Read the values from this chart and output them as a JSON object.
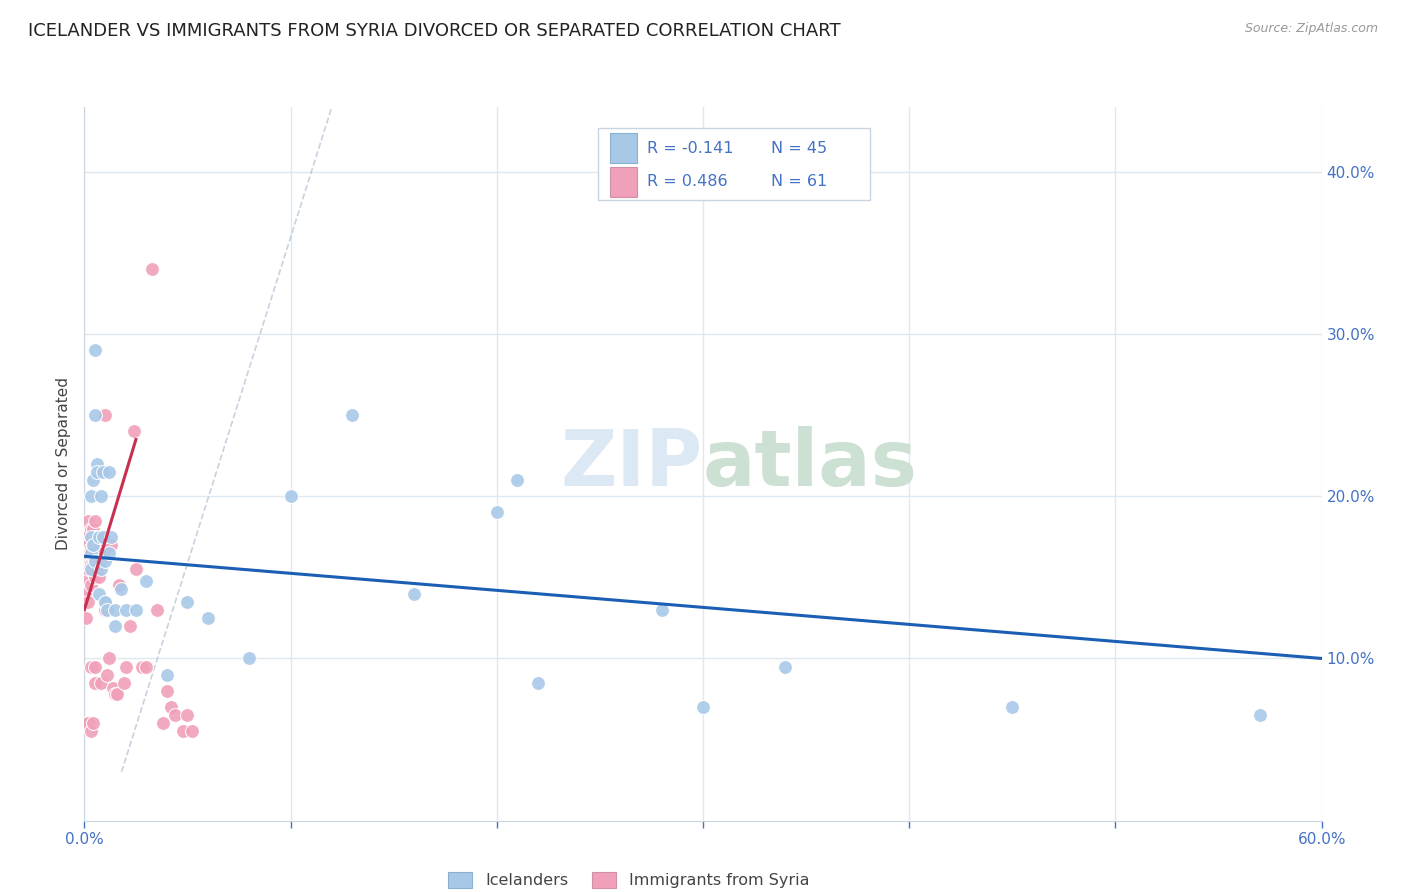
{
  "title": "ICELANDER VS IMMIGRANTS FROM SYRIA DIVORCED OR SEPARATED CORRELATION CHART",
  "source": "Source: ZipAtlas.com",
  "ylabel": "Divorced or Separated",
  "xlim": [
    0.0,
    0.6
  ],
  "ylim": [
    0.0,
    0.44
  ],
  "icelander_color": "#a8c8e8",
  "syria_color": "#f0a0b8",
  "trend_blue": "#1a5fb4",
  "trend_pink": "#c83050",
  "background_color": "#ffffff",
  "grid_color": "#dde8f0",
  "title_fontsize": 13,
  "axis_fontsize": 11,
  "tick_fontsize": 11,
  "icelanders_x": [
    0.003,
    0.003,
    0.003,
    0.003,
    0.004,
    0.004,
    0.005,
    0.005,
    0.005,
    0.006,
    0.006,
    0.007,
    0.007,
    0.008,
    0.008,
    0.009,
    0.009,
    0.01,
    0.01,
    0.01,
    0.011,
    0.012,
    0.012,
    0.013,
    0.015,
    0.015,
    0.018,
    0.02,
    0.025,
    0.03,
    0.04,
    0.05,
    0.06,
    0.08,
    0.1,
    0.13,
    0.16,
    0.2,
    0.22,
    0.28,
    0.34,
    0.45,
    0.57,
    0.3,
    0.21
  ],
  "icelanders_y": [
    0.175,
    0.165,
    0.155,
    0.2,
    0.21,
    0.17,
    0.25,
    0.29,
    0.16,
    0.22,
    0.215,
    0.14,
    0.175,
    0.2,
    0.155,
    0.175,
    0.215,
    0.135,
    0.16,
    0.135,
    0.13,
    0.215,
    0.165,
    0.175,
    0.13,
    0.12,
    0.143,
    0.13,
    0.13,
    0.148,
    0.09,
    0.135,
    0.125,
    0.1,
    0.2,
    0.25,
    0.14,
    0.19,
    0.085,
    0.13,
    0.095,
    0.07,
    0.065,
    0.07,
    0.21
  ],
  "syria_x": [
    0.001,
    0.001,
    0.001,
    0.001,
    0.001,
    0.001,
    0.002,
    0.002,
    0.002,
    0.002,
    0.002,
    0.002,
    0.003,
    0.003,
    0.003,
    0.003,
    0.003,
    0.003,
    0.004,
    0.004,
    0.004,
    0.004,
    0.005,
    0.005,
    0.005,
    0.005,
    0.005,
    0.005,
    0.006,
    0.006,
    0.007,
    0.007,
    0.008,
    0.008,
    0.008,
    0.009,
    0.01,
    0.01,
    0.011,
    0.012,
    0.013,
    0.014,
    0.015,
    0.016,
    0.017,
    0.019,
    0.02,
    0.022,
    0.024,
    0.025,
    0.028,
    0.03,
    0.033,
    0.035,
    0.038,
    0.04,
    0.042,
    0.044,
    0.048,
    0.05,
    0.052
  ],
  "syria_y": [
    0.175,
    0.165,
    0.15,
    0.14,
    0.125,
    0.06,
    0.185,
    0.17,
    0.165,
    0.155,
    0.135,
    0.06,
    0.18,
    0.168,
    0.158,
    0.145,
    0.095,
    0.055,
    0.18,
    0.17,
    0.158,
    0.06,
    0.185,
    0.175,
    0.165,
    0.15,
    0.095,
    0.085,
    0.175,
    0.155,
    0.17,
    0.15,
    0.175,
    0.158,
    0.085,
    0.165,
    0.25,
    0.13,
    0.09,
    0.1,
    0.17,
    0.082,
    0.078,
    0.078,
    0.145,
    0.085,
    0.095,
    0.12,
    0.24,
    0.155,
    0.095,
    0.095,
    0.34,
    0.13,
    0.06,
    0.08,
    0.07,
    0.065,
    0.055,
    0.065,
    0.055
  ]
}
